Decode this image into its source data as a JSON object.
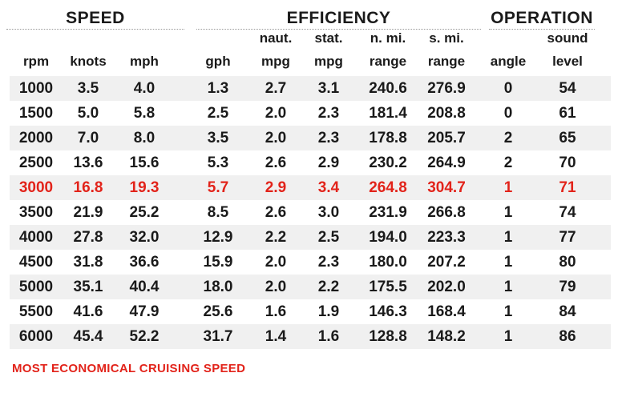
{
  "groups": {
    "speed": "SPEED",
    "efficiency": "EFFICIENCY",
    "operation": "OPERATION"
  },
  "columns": [
    {
      "top": "",
      "bottom": "rpm"
    },
    {
      "top": "",
      "bottom": "knots"
    },
    {
      "top": "",
      "bottom": "mph"
    },
    {
      "top": "",
      "bottom": "gph"
    },
    {
      "top": "naut.",
      "bottom": "mpg"
    },
    {
      "top": "stat.",
      "bottom": "mpg"
    },
    {
      "top": "n. mi.",
      "bottom": "range"
    },
    {
      "top": "s. mi.",
      "bottom": "range"
    },
    {
      "top": "",
      "bottom": "angle"
    },
    {
      "top": "sound",
      "bottom": "level"
    }
  ],
  "rows": [
    [
      "1000",
      "3.5",
      "4.0",
      "1.3",
      "2.7",
      "3.1",
      "240.6",
      "276.9",
      "0",
      "54"
    ],
    [
      "1500",
      "5.0",
      "5.8",
      "2.5",
      "2.0",
      "2.3",
      "181.4",
      "208.8",
      "0",
      "61"
    ],
    [
      "2000",
      "7.0",
      "8.0",
      "3.5",
      "2.0",
      "2.3",
      "178.8",
      "205.7",
      "2",
      "65"
    ],
    [
      "2500",
      "13.6",
      "15.6",
      "5.3",
      "2.6",
      "2.9",
      "230.2",
      "264.9",
      "2",
      "70"
    ],
    [
      "3000",
      "16.8",
      "19.3",
      "5.7",
      "2.9",
      "3.4",
      "264.8",
      "304.7",
      "1",
      "71"
    ],
    [
      "3500",
      "21.9",
      "25.2",
      "8.5",
      "2.6",
      "3.0",
      "231.9",
      "266.8",
      "1",
      "74"
    ],
    [
      "4000",
      "27.8",
      "32.0",
      "12.9",
      "2.2",
      "2.5",
      "194.0",
      "223.3",
      "1",
      "77"
    ],
    [
      "4500",
      "31.8",
      "36.6",
      "15.9",
      "2.0",
      "2.3",
      "180.0",
      "207.2",
      "1",
      "80"
    ],
    [
      "5000",
      "35.1",
      "40.4",
      "18.0",
      "2.0",
      "2.2",
      "175.5",
      "202.0",
      "1",
      "79"
    ],
    [
      "5500",
      "41.6",
      "47.9",
      "25.6",
      "1.6",
      "1.9",
      "146.3",
      "168.4",
      "1",
      "84"
    ],
    [
      "6000",
      "45.4",
      "52.2",
      "31.7",
      "1.4",
      "1.6",
      "128.8",
      "148.2",
      "1",
      "86"
    ]
  ],
  "highlight_row": 4,
  "highlight_color": "#e2231a",
  "footnote": "MOST ECONOMICAL CRUISING SPEED"
}
